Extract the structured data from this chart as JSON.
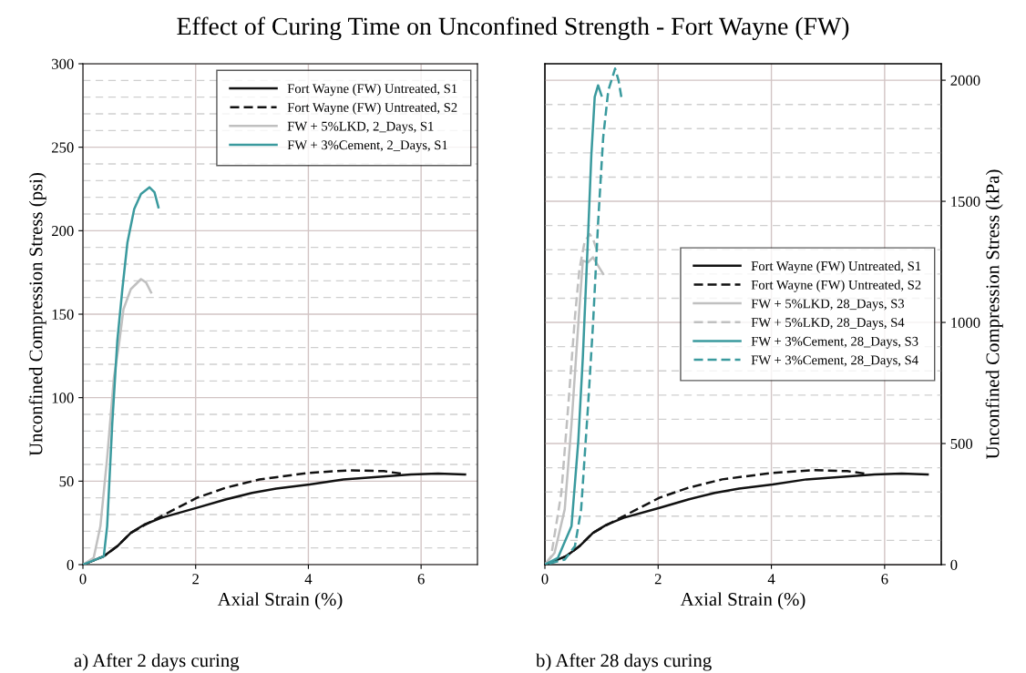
{
  "chart_data": [
    {
      "type": "line",
      "title": "Effect of Curing Time on Unconfined Strength - Fort Wayne (FW)",
      "xlabel": "Axial Strain (%)",
      "ylabel": "Unconfined Compression Stress (psi)",
      "annotations": [
        "a) After 2 days curing"
      ],
      "xlim": [
        0,
        7
      ],
      "xticks": [
        0,
        2,
        4,
        6
      ],
      "ylim": [
        0,
        300
      ],
      "yticks": [
        0,
        50,
        100,
        150,
        200,
        250,
        300
      ],
      "grid": true,
      "legend": "top right",
      "series": [
        {
          "name": "Fort Wayne (FW) Untreated, S1",
          "color": "#111111",
          "line_style": "solid",
          "x": [
            0,
            0.37,
            0.61,
            0.85,
            1.09,
            1.39,
            2.02,
            2.53,
            3.0,
            3.43,
            4.02,
            4.62,
            5.22,
            5.82,
            6.3,
            6.78
          ],
          "values": [
            0,
            5,
            11,
            19,
            24,
            28,
            34,
            39,
            43,
            45.5,
            48,
            51,
            52.5,
            54,
            54.5,
            54
          ]
        },
        {
          "name": "Fort Wayne (FW) Untreated, S2",
          "color": "#111111",
          "line_style": "dashed",
          "x": [
            0,
            0.37,
            0.61,
            0.85,
            1.09,
            1.39,
            2.02,
            2.53,
            3.13,
            4.02,
            4.74,
            5.34,
            5.64
          ],
          "values": [
            0,
            5,
            11,
            19,
            23.6,
            29,
            40,
            46,
            51,
            55,
            56.5,
            56,
            54.5
          ]
        },
        {
          "name": "FW + 5%LKD, 2_Days, S1",
          "color": "#c0c0c0",
          "line_style": "solid",
          "x": [
            0,
            0.19,
            0.31,
            0.43,
            0.55,
            0.64,
            0.72,
            0.85,
            1.03,
            1.12,
            1.21
          ],
          "values": [
            0,
            4,
            23,
            64,
            112,
            132,
            153,
            165,
            171,
            169,
            163
          ]
        },
        {
          "name": "FW + 3%Cement, 2_Days, S1",
          "color": "#3a9a9e",
          "line_style": "solid",
          "x": [
            0,
            0.37,
            0.43,
            0.52,
            0.61,
            0.7,
            0.79,
            0.91,
            1.03,
            1.18,
            1.27,
            1.34
          ],
          "values": [
            0,
            5,
            23,
            84,
            134,
            165,
            193,
            213,
            222,
            226,
            223,
            214
          ]
        }
      ]
    },
    {
      "type": "line",
      "xlabel": "Axial Strain (%)",
      "y2label": "Unconfined Compression Stress (kPa)",
      "annotations": [
        "b) After 28 days curing"
      ],
      "xlim": [
        0,
        7
      ],
      "xticks": [
        0,
        2,
        4,
        6
      ],
      "y2lim": [
        0,
        2068
      ],
      "y2ticks": [
        0,
        500,
        1000,
        1500,
        2000
      ],
      "grid": true,
      "legend": "right",
      "series": [
        {
          "name": "Fort Wayne (FW) Untreated, S1",
          "color": "#111111",
          "line_style": "solid",
          "axis": "y2",
          "x": [
            0,
            0.37,
            0.61,
            0.85,
            1.09,
            1.39,
            2.02,
            2.53,
            3.0,
            3.43,
            4.02,
            4.62,
            5.22,
            5.82,
            6.3,
            6.76
          ],
          "values": [
            0,
            34,
            76,
            131,
            165,
            193,
            234,
            269,
            296,
            314,
            331,
            352,
            362,
            372,
            376,
            372
          ]
        },
        {
          "name": "Fort Wayne (FW) Untreated, S2",
          "color": "#111111",
          "line_style": "dashed",
          "axis": "y2",
          "x": [
            0,
            0.37,
            0.61,
            0.85,
            1.09,
            1.39,
            2.02,
            2.53,
            3.13,
            4.02,
            4.74,
            5.34,
            5.64
          ],
          "values": [
            0,
            34,
            76,
            131,
            163,
            200,
            276,
            317,
            352,
            379,
            390,
            386,
            376
          ]
        },
        {
          "name": "FW + 5%LKD, 28_Days, S3",
          "color": "#c0c0c0",
          "line_style": "solid",
          "axis": "y2",
          "x": [
            0,
            0.17,
            0.35,
            0.47,
            0.59,
            0.67,
            0.76,
            0.85,
            0.94,
            1.03
          ],
          "values": [
            0,
            48,
            228,
            579,
            993,
            1255,
            1248,
            1269,
            1234,
            1200
          ]
        },
        {
          "name": "FW + 5%LKD, 28_Days, S4",
          "color": "#c0c0c0",
          "line_style": "dashed",
          "axis": "y2",
          "x": [
            0,
            0.11,
            0.29,
            0.41,
            0.53,
            0.61,
            0.7,
            0.79,
            0.85,
            0.91
          ],
          "values": [
            0,
            34,
            296,
            648,
            1020,
            1220,
            1331,
            1365,
            1345,
            1303
          ]
        },
        {
          "name": "FW + 3%Cement, 28_Days, S3",
          "color": "#3a9a9e",
          "line_style": "solid",
          "axis": "y2",
          "x": [
            0,
            0.23,
            0.47,
            0.59,
            0.67,
            0.76,
            0.82,
            0.88,
            0.94,
            1.0
          ],
          "values": [
            0,
            28,
            159,
            510,
            855,
            1345,
            1689,
            1931,
            1979,
            1937
          ]
        },
        {
          "name": "FW + 3%Cement, 28_Days, S4",
          "color": "#3a9a9e",
          "line_style": "dashed",
          "axis": "y2",
          "x": [
            0,
            0.35,
            0.53,
            0.64,
            0.76,
            0.85,
            0.94,
            1.03,
            1.12,
            1.24,
            1.3,
            1.35
          ],
          "values": [
            0,
            21,
            76,
            228,
            648,
            993,
            1413,
            1765,
            1958,
            2048,
            2000,
            1931
          ]
        }
      ]
    }
  ]
}
